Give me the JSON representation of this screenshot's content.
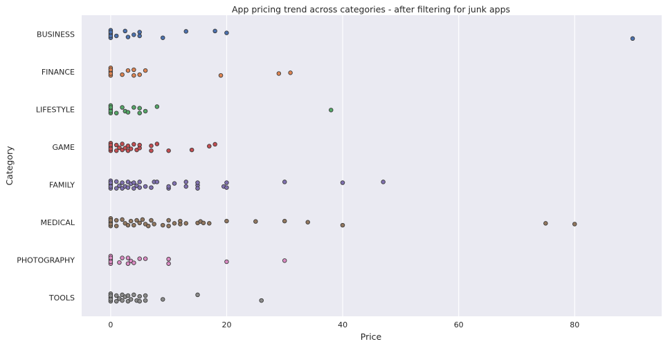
{
  "chart_data": {
    "type": "scatter",
    "title": "App pricing trend across categories - after filtering for junk apps",
    "xlabel": "Price",
    "ylabel": "Category",
    "xlim": [
      -5,
      95
    ],
    "xticks": [
      "0",
      "20",
      "40",
      "60",
      "80"
    ],
    "xtick_values": [
      0,
      20,
      40,
      60,
      80
    ],
    "grid": true,
    "categories": [
      "BUSINESS",
      "FINANCE",
      "LIFESTYLE",
      "GAME",
      "FAMILY",
      "MEDICAL",
      "PHOTOGRAPHY",
      "TOOLS"
    ],
    "series": [
      {
        "category": "BUSINESS",
        "color": "#4c72b0",
        "points": [
          [
            0,
            0
          ],
          [
            0,
            0.1
          ],
          [
            0,
            -0.1
          ],
          [
            0,
            0.05
          ],
          [
            0,
            -0.05
          ],
          [
            0.99,
            0.05
          ],
          [
            2.49,
            -0.08
          ],
          [
            2.99,
            0.08
          ],
          [
            3.99,
            0.02
          ],
          [
            4.99,
            0.05
          ],
          [
            4.99,
            -0.05
          ],
          [
            8.99,
            0.1
          ],
          [
            12.99,
            -0.07
          ],
          [
            17.99,
            -0.08
          ],
          [
            19.99,
            -0.03
          ],
          [
            89.99,
            0.12
          ]
        ]
      },
      {
        "category": "FINANCE",
        "color": "#dd8452",
        "points": [
          [
            0,
            0
          ],
          [
            0,
            0.1
          ],
          [
            0,
            -0.1
          ],
          [
            0,
            0.05
          ],
          [
            0,
            -0.05
          ],
          [
            1.99,
            0.08
          ],
          [
            2.99,
            -0.03
          ],
          [
            3.99,
            0.1
          ],
          [
            3.99,
            -0.05
          ],
          [
            4.99,
            0.08
          ],
          [
            5.99,
            -0.03
          ],
          [
            18.99,
            0.1
          ],
          [
            28.99,
            0.05
          ],
          [
            30.99,
            0.03
          ]
        ]
      },
      {
        "category": "LIFESTYLE",
        "color": "#55a868",
        "points": [
          [
            0,
            0
          ],
          [
            0,
            0.1
          ],
          [
            0,
            -0.1
          ],
          [
            0,
            0.05
          ],
          [
            0,
            -0.05
          ],
          [
            0.99,
            0.1
          ],
          [
            1.99,
            -0.05
          ],
          [
            2.49,
            0.05
          ],
          [
            2.99,
            0.08
          ],
          [
            3.99,
            -0.05
          ],
          [
            4.99,
            0.1
          ],
          [
            4.99,
            -0.03
          ],
          [
            5.99,
            0.05
          ],
          [
            7.99,
            -0.07
          ],
          [
            37.99,
            0.02
          ]
        ]
      },
      {
        "category": "GAME",
        "color": "#c44e52",
        "points": [
          [
            0,
            0
          ],
          [
            0,
            0.1
          ],
          [
            0,
            -0.1
          ],
          [
            0,
            0.05
          ],
          [
            0,
            -0.05
          ],
          [
            0.99,
            0.1
          ],
          [
            0.99,
            -0.05
          ],
          [
            1.49,
            0.02
          ],
          [
            1.99,
            0.08
          ],
          [
            1.99,
            -0.08
          ],
          [
            2.49,
            0.03
          ],
          [
            2.99,
            0.1
          ],
          [
            2.99,
            -0.03
          ],
          [
            3.49,
            0.05
          ],
          [
            3.99,
            -0.07
          ],
          [
            4.49,
            0.08
          ],
          [
            4.99,
            0.03
          ],
          [
            4.99,
            -0.05
          ],
          [
            6.99,
            0.1
          ],
          [
            6.99,
            -0.03
          ],
          [
            7.99,
            -0.08
          ],
          [
            9.99,
            0.1
          ],
          [
            13.99,
            0.08
          ],
          [
            16.99,
            -0.02
          ],
          [
            17.99,
            -0.07
          ]
        ]
      },
      {
        "category": "FAMILY",
        "color": "#8172b2",
        "points": [
          [
            0,
            0
          ],
          [
            0,
            0.1
          ],
          [
            0,
            -0.1
          ],
          [
            0,
            0.05
          ],
          [
            0,
            -0.05
          ],
          [
            0.99,
            0.1
          ],
          [
            0.99,
            -0.08
          ],
          [
            1.49,
            0.03
          ],
          [
            1.99,
            0.1
          ],
          [
            1.99,
            -0.05
          ],
          [
            2.49,
            0.05
          ],
          [
            2.99,
            0.08
          ],
          [
            2.99,
            -0.07
          ],
          [
            3.49,
            -0.02
          ],
          [
            3.99,
            0.1
          ],
          [
            3.99,
            -0.05
          ],
          [
            4.49,
            0.03
          ],
          [
            4.99,
            0.08
          ],
          [
            4.99,
            -0.07
          ],
          [
            5.99,
            0.05
          ],
          [
            6.99,
            0.08
          ],
          [
            7.49,
            -0.07
          ],
          [
            7.99,
            -0.07
          ],
          [
            9.99,
            0.1
          ],
          [
            9.99,
            0.05
          ],
          [
            10.99,
            -0.03
          ],
          [
            12.99,
            0.05
          ],
          [
            12.99,
            -0.07
          ],
          [
            14.99,
            0.02
          ],
          [
            14.99,
            0.1
          ],
          [
            14.99,
            -0.05
          ],
          [
            19.49,
            0.05
          ],
          [
            19.99,
            0.08
          ],
          [
            19.99,
            -0.05
          ],
          [
            29.99,
            -0.07
          ],
          [
            39.99,
            -0.05
          ],
          [
            46.99,
            -0.07
          ]
        ]
      },
      {
        "category": "MEDICAL",
        "color": "#937860",
        "points": [
          [
            0,
            0
          ],
          [
            0,
            0.1
          ],
          [
            0,
            -0.1
          ],
          [
            0,
            0.05
          ],
          [
            0,
            -0.05
          ],
          [
            0.99,
            0.1
          ],
          [
            0.99,
            -0.05
          ],
          [
            1.99,
            -0.07
          ],
          [
            2.49,
            0.03
          ],
          [
            2.99,
            0.08
          ],
          [
            3.49,
            -0.03
          ],
          [
            3.99,
            0.08
          ],
          [
            4.49,
            -0.05
          ],
          [
            4.99,
            0.02
          ],
          [
            5.49,
            -0.07
          ],
          [
            5.99,
            0.05
          ],
          [
            6.49,
            0.1
          ],
          [
            6.99,
            -0.05
          ],
          [
            7.49,
            0.05
          ],
          [
            8.99,
            0.08
          ],
          [
            9.99,
            0.1
          ],
          [
            9.99,
            -0.05
          ],
          [
            10.99,
            0.03
          ],
          [
            11.99,
            0.05
          ],
          [
            11.99,
            -0.03
          ],
          [
            12.99,
            0.03
          ],
          [
            14.99,
            0.02
          ],
          [
            15.49,
            -0.02
          ],
          [
            15.99,
            0.02
          ],
          [
            16.99,
            0.03
          ],
          [
            19.99,
            -0.03
          ],
          [
            24.99,
            -0.02
          ],
          [
            29.99,
            -0.03
          ],
          [
            33.99,
            0
          ],
          [
            39.99,
            0.08
          ],
          [
            74.99,
            0.03
          ],
          [
            79.99,
            0.05
          ]
        ]
      },
      {
        "category": "PHOTOGRAPHY",
        "color": "#da8bc3",
        "points": [
          [
            0,
            0
          ],
          [
            0,
            0.1
          ],
          [
            0,
            -0.1
          ],
          [
            0,
            0.05
          ],
          [
            0,
            -0.05
          ],
          [
            1.49,
            0.07
          ],
          [
            1.99,
            -0.05
          ],
          [
            2.99,
            0.1
          ],
          [
            2.99,
            -0.05
          ],
          [
            3.49,
            0.03
          ],
          [
            3.99,
            0.08
          ],
          [
            4.99,
            -0.03
          ],
          [
            5.99,
            -0.03
          ],
          [
            9.99,
            0.1
          ],
          [
            9.99,
            -0.02
          ],
          [
            19.99,
            0.05
          ],
          [
            29.99,
            0.02
          ]
        ]
      },
      {
        "category": "TOOLS",
        "color": "#8c8c8c",
        "points": [
          [
            0,
            0
          ],
          [
            0,
            0.1
          ],
          [
            0,
            -0.1
          ],
          [
            0,
            0.05
          ],
          [
            0,
            -0.05
          ],
          [
            0.99,
            0.1
          ],
          [
            0.99,
            -0.05
          ],
          [
            1.49,
            0.03
          ],
          [
            1.99,
            0.08
          ],
          [
            1.99,
            -0.07
          ],
          [
            2.49,
            -0.02
          ],
          [
            2.99,
            0.1
          ],
          [
            2.99,
            -0.05
          ],
          [
            3.49,
            0.05
          ],
          [
            3.99,
            -0.07
          ],
          [
            4.49,
            0.08
          ],
          [
            4.99,
            0.1
          ],
          [
            4.99,
            -0.03
          ],
          [
            5.99,
            0.08
          ],
          [
            5.99,
            -0.05
          ],
          [
            8.99,
            0.05
          ],
          [
            14.99,
            -0.07
          ],
          [
            25.99,
            0.08
          ]
        ]
      }
    ]
  }
}
